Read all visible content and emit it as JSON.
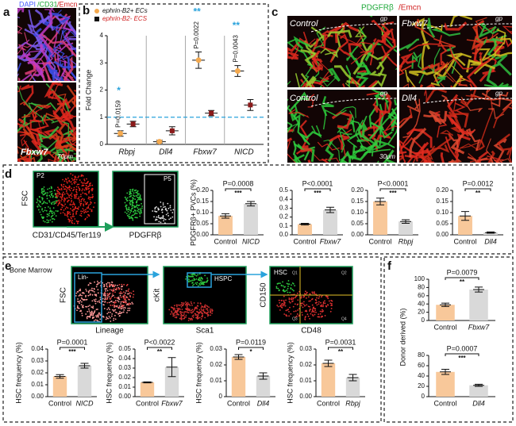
{
  "panel_labels": [
    "a",
    "b",
    "c",
    "d",
    "e",
    "f"
  ],
  "panel_a": {
    "stain": {
      "dapi": "DAPI",
      "cd31": "/CD31",
      "emcn": "/Emcn"
    },
    "label": "Fbxw7",
    "scale": "70μm"
  },
  "panel_c": {
    "stain": {
      "pdgfrb": "PDGFRβ",
      "emcn": "/Emcn"
    },
    "images": [
      {
        "label": "Control",
        "gp": "gp"
      },
      {
        "label": "Fbxw7",
        "gp": "gp"
      },
      {
        "label": "Control",
        "gp": "gp"
      },
      {
        "label": "Dll4",
        "gp": "gp"
      }
    ],
    "scale": "30μm"
  },
  "panel_d_flow": {
    "y_axis": "FSC",
    "x_axis1": "CD31/CD45/Ter119",
    "gate1": "P2",
    "x_axis2": "PDGFRβ",
    "gate2": "P5"
  },
  "panel_e_flow": {
    "title": "Bone Marrow",
    "gate1": "Lin-",
    "y1": "FSC",
    "x1": "Lineage",
    "y2": "cKit",
    "x2": "Sca1",
    "gate2": "HSPC",
    "gate3": "HSC",
    "y3": "CD150",
    "x3": "CD48",
    "quadrants": [
      "Q1",
      "Q2",
      "Q3",
      "Q4"
    ]
  },
  "chart_data": [
    {
      "type": "dot",
      "ylabel": "Fold Change",
      "categories": [
        "Rbpj",
        "Dll4",
        "Fbxw7",
        "NICD"
      ],
      "series": [
        {
          "name": "ephrin-B2+ ECs",
          "color": "#f4a94e",
          "values": [
            0.4,
            0.1,
            3.1,
            2.7
          ],
          "errors": [
            0.1,
            0.05,
            0.3,
            0.2
          ]
        },
        {
          "name": "ephrin-B2- ECS",
          "color": "#8b1a1a",
          "values": [
            0.75,
            0.5,
            1.15,
            1.45
          ],
          "errors": [
            0.1,
            0.15,
            0.1,
            0.2
          ]
        }
      ],
      "ylim": [
        0,
        4
      ],
      "yticks": [
        0,
        1,
        2,
        3,
        4
      ],
      "reference_line": 1,
      "p_values": [
        "P=0.0159",
        null,
        "P=0.0022",
        "P=0.0043"
      ],
      "stars": [
        "*",
        null,
        "**",
        "**"
      ]
    },
    {
      "type": "bar",
      "ylabel": "PDGFRβ+ PVCs (%)",
      "categories": [
        "Control",
        "NICD"
      ],
      "colors": [
        "#f8c89a",
        "#d9d9d9"
      ],
      "values": [
        0.085,
        0.14
      ],
      "errors": [
        0.01,
        0.01
      ],
      "ylim": [
        0,
        0.2
      ],
      "yticks": [
        {
          "value": 0,
          "label": "0.00"
        },
        {
          "value": 0.05,
          "label": "0.05"
        },
        {
          "value": 0.1,
          "label": "0.10"
        },
        {
          "value": 0.15,
          "label": "0.15"
        },
        {
          "value": 0.2,
          "label": "0.20"
        }
      ],
      "p_value": "P=0.0008",
      "stars": "***"
    },
    {
      "type": "bar",
      "categories": [
        "Control",
        "Fbxw7"
      ],
      "colors": [
        "#f8c89a",
        "#d9d9d9"
      ],
      "values": [
        0.12,
        0.28
      ],
      "errors": [
        0.01,
        0.03
      ],
      "ylim": [
        0,
        0.5
      ],
      "yticks": [
        {
          "value": 0,
          "label": "0.0"
        },
        0.1,
        0.2,
        0.3,
        0.4,
        0.5
      ],
      "p_value": "P<0.0001",
      "stars": "***"
    },
    {
      "type": "bar",
      "categories": [
        "Control",
        "Rbpj"
      ],
      "colors": [
        "#f8c89a",
        "#d9d9d9"
      ],
      "values": [
        0.15,
        0.06
      ],
      "errors": [
        0.015,
        0.008
      ],
      "ylim": [
        0,
        0.2
      ],
      "yticks": [
        {
          "value": 0,
          "label": "0.00"
        },
        {
          "value": 0.05,
          "label": "0.05"
        },
        {
          "value": 0.1,
          "label": "0.10"
        },
        {
          "value": 0.15,
          "label": "0.15"
        },
        {
          "value": 0.2,
          "label": "0.20"
        }
      ],
      "p_value": "P<0.0001",
      "stars": "***"
    },
    {
      "type": "bar",
      "categories": [
        "Control",
        "Dll4"
      ],
      "colors": [
        "#f8c89a",
        "#d9d9d9"
      ],
      "values": [
        0.085,
        0.01
      ],
      "errors": [
        0.02,
        0.003
      ],
      "ylim": [
        0,
        0.2
      ],
      "yticks": [
        {
          "value": 0,
          "label": "0.00"
        },
        {
          "value": 0.05,
          "label": "0.05"
        },
        {
          "value": 0.1,
          "label": "0.10"
        },
        {
          "value": 0.15,
          "label": "0.15"
        },
        {
          "value": 0.2,
          "label": "0.20"
        }
      ],
      "p_value": "P=0.0012",
      "stars": "**"
    },
    {
      "type": "bar",
      "ylabel": "HSC frequency (%)",
      "categories": [
        "Control",
        "NICD"
      ],
      "colors": [
        "#f8c89a",
        "#d9d9d9"
      ],
      "values": [
        0.017,
        0.026
      ],
      "errors": [
        0.0015,
        0.002
      ],
      "ylim": [
        0,
        0.04
      ],
      "yticks": [
        {
          "value": 0,
          "label": "0.00"
        },
        0.01,
        0.02,
        0.03,
        0.04
      ],
      "p_value": "P=0.0001",
      "stars": "***"
    },
    {
      "type": "bar",
      "ylabel": "HSC frequency (%)",
      "categories": [
        "Control",
        "Fbxw7"
      ],
      "colors": [
        "#f8c89a",
        "#d9d9d9"
      ],
      "values": [
        0.015,
        0.031
      ],
      "errors": [
        0.0005,
        0.01
      ],
      "ylim": [
        0,
        0.05
      ],
      "yticks": [
        {
          "value": 0,
          "label": "0.00"
        },
        0.01,
        0.02,
        0.03,
        0.04,
        0.05
      ],
      "p_value": "P<0.0022",
      "stars": "**"
    },
    {
      "type": "bar",
      "ylabel": "HSC frequency (%)",
      "categories": [
        "Control",
        "Dll4"
      ],
      "colors": [
        "#f8c89a",
        "#d9d9d9"
      ],
      "values": [
        0.025,
        0.013
      ],
      "errors": [
        0.0015,
        0.002
      ],
      "ylim": [
        0,
        0.03
      ],
      "yticks": [
        0,
        0.01,
        0.02,
        0.03
      ],
      "p_value": "P=0.0119",
      "stars": "*"
    },
    {
      "type": "bar",
      "ylabel": "HSC frequency (%)",
      "categories": [
        "Control",
        "Rbpj"
      ],
      "colors": [
        "#f8c89a",
        "#d9d9d9"
      ],
      "values": [
        0.021,
        0.012
      ],
      "errors": [
        0.002,
        0.002
      ],
      "ylim": [
        0,
        0.03
      ],
      "yticks": [
        {
          "value": 0,
          "label": "0.00"
        },
        0.01,
        0.02,
        0.03
      ],
      "p_value": "P=0.0031",
      "stars": "**"
    },
    {
      "type": "bar",
      "ylabel": "Donor derived (%)",
      "categories": [
        "Control",
        "Fbxw7"
      ],
      "colors": [
        "#f8c89a",
        "#d9d9d9"
      ],
      "values": [
        38,
        75
      ],
      "errors": [
        4,
        6
      ],
      "ylim": [
        0,
        100
      ],
      "yticks": [
        0,
        20,
        40,
        60,
        80,
        100
      ],
      "p_value": "P=0.0079",
      "stars": "**"
    },
    {
      "type": "bar",
      "categories": [
        "Control",
        "Dll4"
      ],
      "colors": [
        "#f8c89a",
        "#d9d9d9"
      ],
      "values": [
        48,
        22
      ],
      "errors": [
        5,
        2
      ],
      "ylim": [
        0,
        80
      ],
      "yticks": [
        0,
        20,
        40,
        60,
        80
      ],
      "p_value": "P=0.0007",
      "stars": "***"
    }
  ]
}
